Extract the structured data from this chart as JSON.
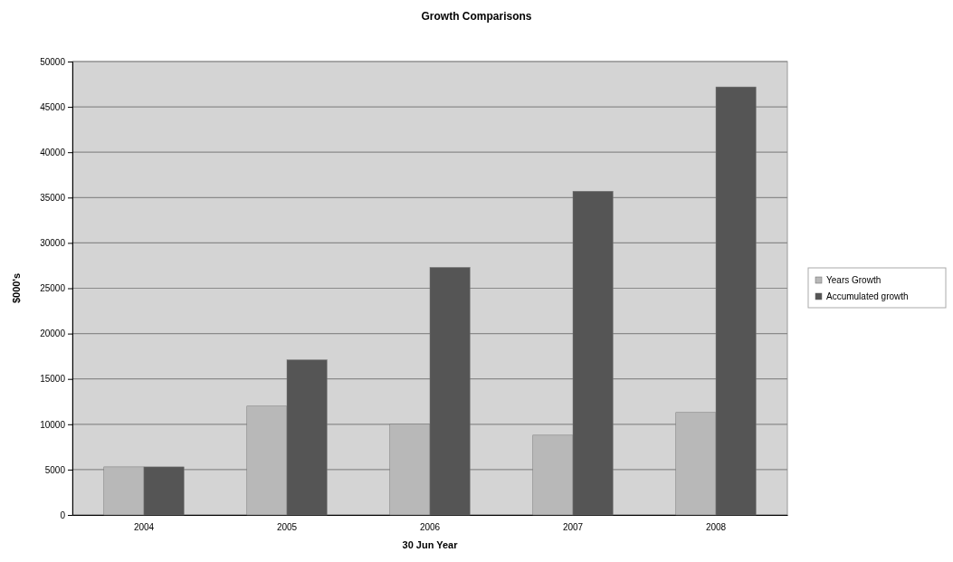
{
  "chart_data": {
    "type": "bar",
    "title": "Growth Comparisons",
    "xlabel": "30 Jun Year",
    "ylabel": "$000's",
    "categories": [
      "2004",
      "2005",
      "2006",
      "2007",
      "2008"
    ],
    "series": [
      {
        "name": "Years Growth",
        "color": "#b8b8b8",
        "values": [
          5300,
          12000,
          10000,
          8800,
          11300
        ]
      },
      {
        "name": "Accumulated growth",
        "color": "#555555",
        "values": [
          5300,
          17100,
          27300,
          35700,
          47200
        ]
      }
    ],
    "ylim": [
      0,
      50000
    ],
    "yticks": [
      0,
      5000,
      10000,
      15000,
      20000,
      25000,
      30000,
      35000,
      40000,
      45000,
      50000
    ],
    "grid": "y",
    "legend": "right"
  }
}
